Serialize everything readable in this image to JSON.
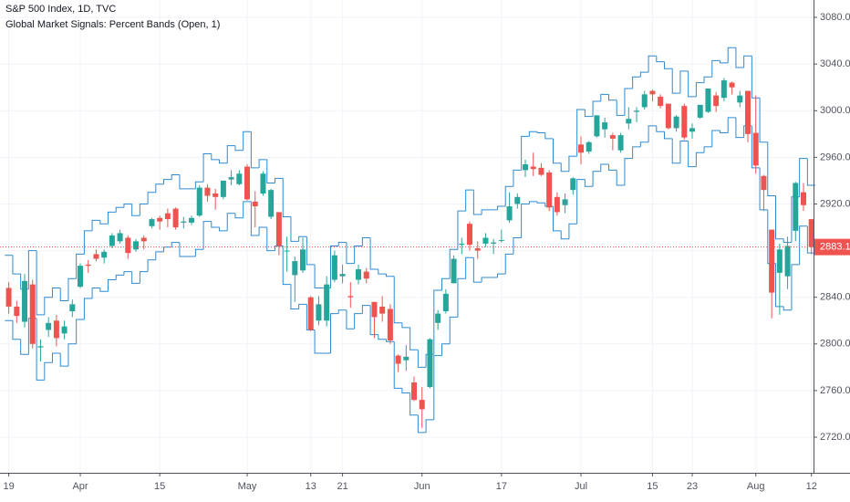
{
  "chart_data": {
    "type": "candlestick",
    "title": "S&P 500 Index, 1D, TVC",
    "subtitle": "Global Market Signals: Percent Bands (Open, 1)",
    "categories": [
      "19",
      null,
      null,
      null,
      null,
      null,
      null,
      null,
      null,
      "Apr",
      null,
      null,
      null,
      null,
      null,
      null,
      null,
      null,
      null,
      "15",
      null,
      null,
      null,
      null,
      null,
      null,
      null,
      null,
      null,
      null,
      "May",
      null,
      null,
      null,
      null,
      null,
      null,
      null,
      "13",
      null,
      null,
      null,
      "21",
      null,
      null,
      null,
      null,
      null,
      null,
      null,
      null,
      null,
      "Jun",
      null,
      null,
      null,
      null,
      null,
      null,
      null,
      null,
      null,
      "17",
      null,
      null,
      null,
      null,
      null,
      null,
      null,
      null,
      null,
      "Jul",
      null,
      null,
      null,
      null,
      null,
      null,
      null,
      null,
      "15",
      null,
      null,
      null,
      null,
      "23",
      null,
      null,
      null,
      null,
      null,
      null,
      null,
      "Aug",
      null,
      null,
      null,
      null,
      null,
      null,
      "12"
    ],
    "open": [
      2848,
      2832,
      2819,
      2851,
      2797,
      2812,
      2820,
      2809,
      2828,
      2849,
      2868,
      2877,
      2874,
      2884,
      2888,
      2891,
      2881,
      2891,
      2901,
      2908,
      2912,
      2916,
      2904,
      2904,
      2910,
      2934,
      2929,
      2926,
      2941,
      2937,
      2952,
      2922,
      2929,
      2909,
      2913,
      2880,
      2859,
      2863,
      2840,
      2820,
      2820,
      2855,
      2858,
      2841,
      2855,
      2862,
      2836,
      2832,
      2830,
      2790,
      2786,
      2767,
      2752,
      2763,
      2818,
      2828,
      2852,
      2885,
      2903,
      2882,
      2886,
      2886,
      2889,
      2906,
      2920,
      2949,
      2952,
      2951,
      2947,
      2926,
      2919,
      2932,
      2971,
      2965,
      2978,
      2984,
      2979,
      2966,
      2989,
      2999,
      3003,
      3017,
      3012,
      3006,
      2985,
      3004,
      2982,
      2994,
      2999,
      3013,
      3011,
      3024,
      3007,
      3017,
      2981,
      2944,
      2898,
      2861,
      2858,
      2897,
      2930,
      2907
    ],
    "high": [
      2853,
      2837,
      2860,
      2855,
      2804,
      2823,
      2825,
      2820,
      2838,
      2869,
      2872,
      2881,
      2881,
      2895,
      2898,
      2893,
      2890,
      2893,
      2908,
      2910,
      2916,
      2917,
      2909,
      2910,
      2936,
      2937,
      2933,
      2940,
      2949,
      2949,
      2954,
      2931,
      2948,
      2933,
      2913,
      2892,
      2875,
      2891,
      2841,
      2841,
      2858,
      2880,
      2868,
      2853,
      2868,
      2865,
      2836,
      2841,
      2834,
      2791,
      2799,
      2772,
      2763,
      2805,
      2829,
      2847,
      2876,
      2891,
      2905,
      2888,
      2895,
      2890,
      2898,
      2930,
      2929,
      2958,
      2964,
      2955,
      2949,
      2930,
      2929,
      2943,
      2978,
      2974,
      2996,
      2994,
      2981,
      2981,
      3003,
      3003,
      3017,
      3018,
      3014,
      3006,
      2996,
      3006,
      2989,
      3005,
      3019,
      3016,
      3028,
      3025,
      3017,
      3017,
      3013,
      2945,
      2898,
      2886,
      2892,
      2939,
      2938,
      2907
    ],
    "low": [
      2826,
      2818,
      2814,
      2796,
      2785,
      2806,
      2798,
      2804,
      2823,
      2848,
      2861,
      2871,
      2869,
      2882,
      2886,
      2873,
      2879,
      2881,
      2899,
      2898,
      2900,
      2898,
      2899,
      2902,
      2909,
      2922,
      2915,
      2924,
      2936,
      2936,
      2923,
      2900,
      2927,
      2907,
      2876,
      2862,
      2836,
      2861,
      2811,
      2816,
      2815,
      2853,
      2852,
      2831,
      2851,
      2852,
      2805,
      2819,
      2800,
      2776,
      2777,
      2751,
      2728,
      2762,
      2812,
      2826,
      2852,
      2877,
      2880,
      2873,
      2883,
      2877,
      2887,
      2904,
      2916,
      2943,
      2944,
      2944,
      2914,
      2910,
      2912,
      2928,
      2954,
      2963,
      2977,
      2977,
      2966,
      2964,
      2984,
      2990,
      3001,
      3008,
      3002,
      2984,
      2982,
      2975,
      2976,
      2993,
      2998,
      2999,
      3008,
      3014,
      3003,
      2973,
      2946,
      2914,
      2822,
      2825,
      2847,
      2888,
      2914,
      2877
    ],
    "close": [
      2832,
      2824,
      2854,
      2800,
      2798,
      2818,
      2805,
      2815,
      2834,
      2867,
      2867,
      2873,
      2879,
      2893,
      2895,
      2878,
      2888,
      2888,
      2907,
      2905,
      2907,
      2900,
      2905,
      2908,
      2934,
      2927,
      2926,
      2940,
      2943,
      2946,
      2924,
      2918,
      2946,
      2932,
      2884,
      2880,
      2871,
      2881,
      2812,
      2834,
      2851,
      2876,
      2860,
      2840,
      2864,
      2856,
      2823,
      2826,
      2803,
      2783,
      2789,
      2752,
      2744,
      2804,
      2826,
      2843,
      2873,
      2886,
      2885,
      2880,
      2891,
      2887,
      2889,
      2918,
      2926,
      2954,
      2950,
      2945,
      2917,
      2913,
      2924,
      2942,
      2964,
      2973,
      2996,
      2990,
      2976,
      2979,
      2993,
      3000,
      3014,
      3014,
      3004,
      2985,
      2995,
      2977,
      2985,
      3005,
      3019,
      3004,
      3026,
      3020,
      3013,
      2980,
      2953,
      2932,
      2844,
      2881,
      2884,
      2938,
      2919,
      2883.1
    ],
    "up_color": "#26a69a",
    "down_color": "#ef5350",
    "bands": {
      "color": "#2f8ad1",
      "upper": [
        2876,
        2860,
        2847,
        2880,
        2825,
        2840,
        2848,
        2837,
        2856,
        2877,
        2897,
        2906,
        2903,
        2913,
        2917,
        2920,
        2910,
        2920,
        2930,
        2937,
        2941,
        2945,
        2933,
        2933,
        2939,
        2963,
        2958,
        2955,
        2970,
        2966,
        2982,
        2951,
        2958,
        2938,
        2942,
        2909,
        2888,
        2892,
        2868,
        2848,
        2848,
        2884,
        2887,
        2869,
        2884,
        2891,
        2864,
        2860,
        2858,
        2818,
        2814,
        2795,
        2780,
        2791,
        2846,
        2856,
        2881,
        2914,
        2932,
        2911,
        2915,
        2915,
        2918,
        2935,
        2949,
        2978,
        2982,
        2981,
        2976,
        2955,
        2948,
        2961,
        3001,
        2995,
        3008,
        3014,
        3009,
        2996,
        3019,
        3029,
        3033,
        3047,
        3042,
        3036,
        3015,
        3034,
        3012,
        3024,
        3029,
        3043,
        3041,
        3054,
        3037,
        3047,
        3011,
        2973,
        2927,
        2890,
        2887,
        2926,
        2959,
        2936
      ],
      "lower": [
        2820,
        2804,
        2791,
        2822,
        2769,
        2784,
        2792,
        2781,
        2800,
        2821,
        2839,
        2848,
        2845,
        2855,
        2859,
        2862,
        2852,
        2862,
        2872,
        2879,
        2883,
        2887,
        2875,
        2875,
        2881,
        2905,
        2900,
        2897,
        2912,
        2908,
        2922,
        2893,
        2900,
        2880,
        2884,
        2851,
        2830,
        2834,
        2812,
        2792,
        2792,
        2826,
        2829,
        2813,
        2826,
        2833,
        2808,
        2804,
        2802,
        2762,
        2758,
        2739,
        2724,
        2735,
        2790,
        2800,
        2823,
        2856,
        2874,
        2853,
        2857,
        2857,
        2860,
        2877,
        2891,
        2920,
        2922,
        2921,
        2918,
        2897,
        2890,
        2903,
        2941,
        2935,
        2948,
        2954,
        2949,
        2936,
        2959,
        2969,
        2973,
        2987,
        2982,
        2976,
        2955,
        2974,
        2952,
        2964,
        2969,
        2983,
        2981,
        2994,
        2977,
        2987,
        2951,
        2915,
        2869,
        2832,
        2829,
        2868,
        2901,
        2878
      ]
    },
    "last_price": 2883.1,
    "last_price_color": "#ef5350",
    "ylim": [
      2689.5,
      3094.9
    ],
    "yticks": [
      {
        "value": 2720,
        "label": "2720.0"
      },
      {
        "value": 2760,
        "label": "2760.0"
      },
      {
        "value": 2800,
        "label": "2800.0"
      },
      {
        "value": 2840,
        "label": "2840.0"
      },
      {
        "value": 2880,
        "label": "2880.0"
      },
      {
        "value": 2920,
        "label": "2920.0"
      },
      {
        "value": 2960,
        "label": "2960.0"
      },
      {
        "value": 3000,
        "label": "3000.0"
      },
      {
        "value": 3040,
        "label": "3040.0"
      },
      {
        "value": 3080,
        "label": "3080.0"
      }
    ],
    "grid": true
  }
}
